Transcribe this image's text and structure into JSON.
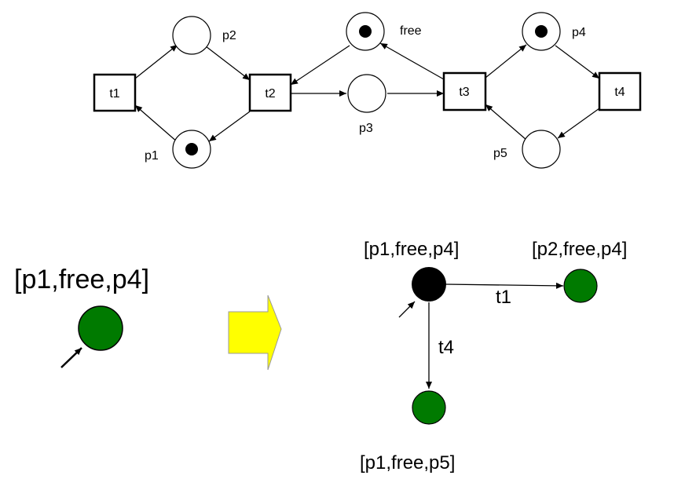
{
  "petri_net": {
    "transitions": [
      {
        "id": "t1",
        "label": "t1"
      },
      {
        "id": "t2",
        "label": "t2"
      },
      {
        "id": "t3",
        "label": "t3"
      },
      {
        "id": "t4",
        "label": "t4"
      }
    ],
    "places": [
      {
        "id": "p1",
        "label": "p1",
        "token": true
      },
      {
        "id": "p2",
        "label": "p2",
        "token": false
      },
      {
        "id": "p3",
        "label": "p3",
        "token": false
      },
      {
        "id": "free",
        "label": "free",
        "token": true
      },
      {
        "id": "p4",
        "label": "p4",
        "token": true
      },
      {
        "id": "p5",
        "label": "p5",
        "token": false
      }
    ]
  },
  "initial_state": {
    "label": "[p1,free,p4]",
    "node_color": "#007A00"
  },
  "arrow_color": "#FFFF00",
  "reachability_graph": {
    "root": {
      "label": "[p1,free,p4]",
      "color": "#000000"
    },
    "child_right": {
      "label": "[p2,free,p4]",
      "color": "#007A00"
    },
    "child_down": {
      "label": "[p1,free,p5]",
      "color": "#007A00"
    },
    "edge_right_label": "t1",
    "edge_down_label": "t4"
  }
}
